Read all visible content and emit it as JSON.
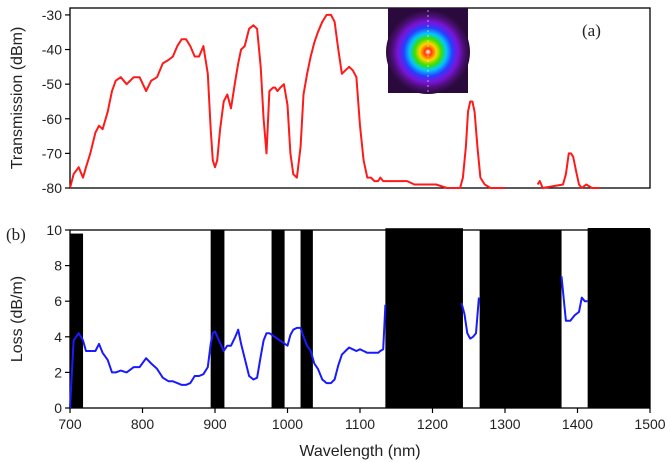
{
  "chart_data": [
    {
      "panel": "(a)",
      "type": "line",
      "xlabel": "",
      "ylabel": "Transmission (dBm)",
      "xlim": [
        700,
        1500
      ],
      "ylim": [
        -80,
        -28
      ],
      "yticks": [
        -80,
        -70,
        -60,
        -50,
        -40,
        -30
      ],
      "series": [
        {
          "color": "#ff1a1a",
          "x": [
            700,
            705,
            712,
            718,
            722,
            728,
            735,
            740,
            745,
            752,
            758,
            763,
            770,
            778,
            788,
            796,
            805,
            812,
            820,
            828,
            836,
            842,
            848,
            854,
            860,
            866,
            872,
            878,
            884,
            890,
            894,
            897,
            900,
            903,
            907,
            912,
            917,
            922,
            928,
            932,
            936,
            941,
            947,
            953,
            958,
            963,
            967,
            971,
            975,
            980,
            983,
            986,
            990,
            995,
            1000,
            1004,
            1008,
            1013,
            1018,
            1022,
            1027,
            1032,
            1037,
            1042,
            1048,
            1054,
            1060,
            1065,
            1070,
            1075,
            1080,
            1085,
            1090,
            1095,
            1100,
            1105,
            1110,
            1115,
            1120,
            1125,
            1128,
            1132,
            1136,
            1140,
            1146,
            1155,
            1165,
            1175,
            1190,
            1205,
            1220,
            1230,
            1238,
            1242,
            1246,
            1249,
            1252,
            1255,
            1258,
            1262,
            1266,
            1272,
            1280,
            1290,
            1300
          ],
          "y": [
            -80,
            -76,
            -74,
            -77,
            -74,
            -70,
            -64,
            -62,
            -63,
            -58,
            -52,
            -49,
            -48,
            -50,
            -48,
            -48,
            -52,
            -49,
            -48,
            -44,
            -43,
            -42,
            -39,
            -37,
            -37,
            -39,
            -42,
            -42,
            -39,
            -47,
            -63,
            -72,
            -74,
            -72,
            -63,
            -55,
            -53,
            -57,
            -49,
            -44,
            -40,
            -39,
            -34,
            -33,
            -34,
            -45,
            -60,
            -70,
            -52,
            -51,
            -51,
            -52,
            -51,
            -50,
            -56,
            -70,
            -76,
            -77,
            -68,
            -53,
            -47,
            -42,
            -38,
            -35,
            -32,
            -30,
            -30,
            -32,
            -40,
            -47,
            -46,
            -45,
            -46,
            -48,
            -62,
            -72,
            -77,
            -77,
            -78,
            -78,
            -77,
            -78,
            -78,
            -78,
            -78,
            -78,
            -78,
            -79,
            -79,
            -79,
            -80,
            -80,
            -80,
            -77,
            -68,
            -58,
            -55,
            -55,
            -58,
            -68,
            -77,
            -79,
            -80,
            -80,
            -80
          ]
        },
        {
          "color": "#ff1a1a",
          "x": [
            1345,
            1348,
            1352,
            1380,
            1384,
            1388,
            1391,
            1394,
            1398,
            1402,
            1406,
            1412,
            1420,
            1430
          ],
          "y": [
            -79,
            -78,
            -80,
            -79,
            -76,
            -70,
            -70,
            -71,
            -75,
            -79,
            -80,
            -79,
            -80,
            -80
          ]
        }
      ]
    },
    {
      "panel": "(b)",
      "type": "line",
      "xlabel": "Wavelength (nm)",
      "ylabel": "Loss (dB/m)",
      "xlim": [
        700,
        1500
      ],
      "ylim": [
        0,
        10
      ],
      "xticks": [
        700,
        800,
        900,
        1000,
        1100,
        1200,
        1300,
        1400,
        1500
      ],
      "yticks": [
        0,
        2,
        4,
        6,
        8,
        10
      ],
      "series": [
        {
          "color": "#1a1aff",
          "x": [
            700,
            705,
            712,
            718,
            722,
            728,
            735,
            740,
            745,
            752,
            758,
            763,
            770,
            778,
            788,
            796,
            805,
            812,
            820,
            828,
            836,
            842,
            848,
            854,
            860,
            866,
            872,
            878,
            884,
            890,
            894,
            897,
            900,
            912,
            917,
            922,
            928,
            932,
            936,
            941,
            947,
            953,
            958,
            963,
            967,
            971,
            975,
            1000,
            1004,
            1008,
            1013,
            1018,
            1022,
            1027,
            1032,
            1037,
            1042,
            1048,
            1054,
            1060,
            1065,
            1070,
            1075,
            1080,
            1085,
            1090,
            1095,
            1100,
            1105,
            1110,
            1115,
            1120,
            1125,
            1128,
            1132,
            1135
          ],
          "y": [
            0,
            3.8,
            4.2,
            3.8,
            3.2,
            3.2,
            3.2,
            3.6,
            3.1,
            2.7,
            2.0,
            2.0,
            2.1,
            2.0,
            2.3,
            2.3,
            2.8,
            2.5,
            2.2,
            1.7,
            1.5,
            1.5,
            1.4,
            1.3,
            1.3,
            1.4,
            1.8,
            1.8,
            1.9,
            2.3,
            3.6,
            4.2,
            4.3,
            3.2,
            3.5,
            3.5,
            4.0,
            4.4,
            3.6,
            2.8,
            1.8,
            1.6,
            1.7,
            2.9,
            3.8,
            4.2,
            4.2,
            3.5,
            4.1,
            4.4,
            4.5,
            4.5,
            4.0,
            3.5,
            3.2,
            2.5,
            2.2,
            1.6,
            1.4,
            1.4,
            1.6,
            2.4,
            3.0,
            3.2,
            3.4,
            3.3,
            3.2,
            3.3,
            3.2,
            3.1,
            3.1,
            3.1,
            3.1,
            3.2,
            3.3,
            5.8
          ]
        },
        {
          "color": "#1a1aff",
          "x": [
            1240,
            1244,
            1248,
            1252,
            1256,
            1260,
            1264
          ],
          "y": [
            5.9,
            5.3,
            4.2,
            3.9,
            4.0,
            4.2,
            6.2
          ]
        },
        {
          "color": "#1a1aff",
          "x": [
            1378,
            1384,
            1390,
            1396,
            1402,
            1406,
            1410,
            1414
          ],
          "y": [
            7.4,
            4.9,
            4.9,
            5.2,
            5.4,
            6.2,
            6.0,
            6.0
          ]
        }
      ],
      "bars": [
        {
          "x0": 700,
          "x1": 718,
          "y": 9.8
        },
        {
          "x0": 894,
          "x1": 913,
          "y": 10
        },
        {
          "x0": 978,
          "x1": 996,
          "y": 10
        },
        {
          "x0": 1018,
          "x1": 1035,
          "y": 10
        },
        {
          "x0": 1135,
          "x1": 1242,
          "y": 10.1
        },
        {
          "x0": 1265,
          "x1": 1378,
          "y": 10
        },
        {
          "x0": 1414,
          "x1": 1500,
          "y": 10.2
        }
      ]
    }
  ]
}
